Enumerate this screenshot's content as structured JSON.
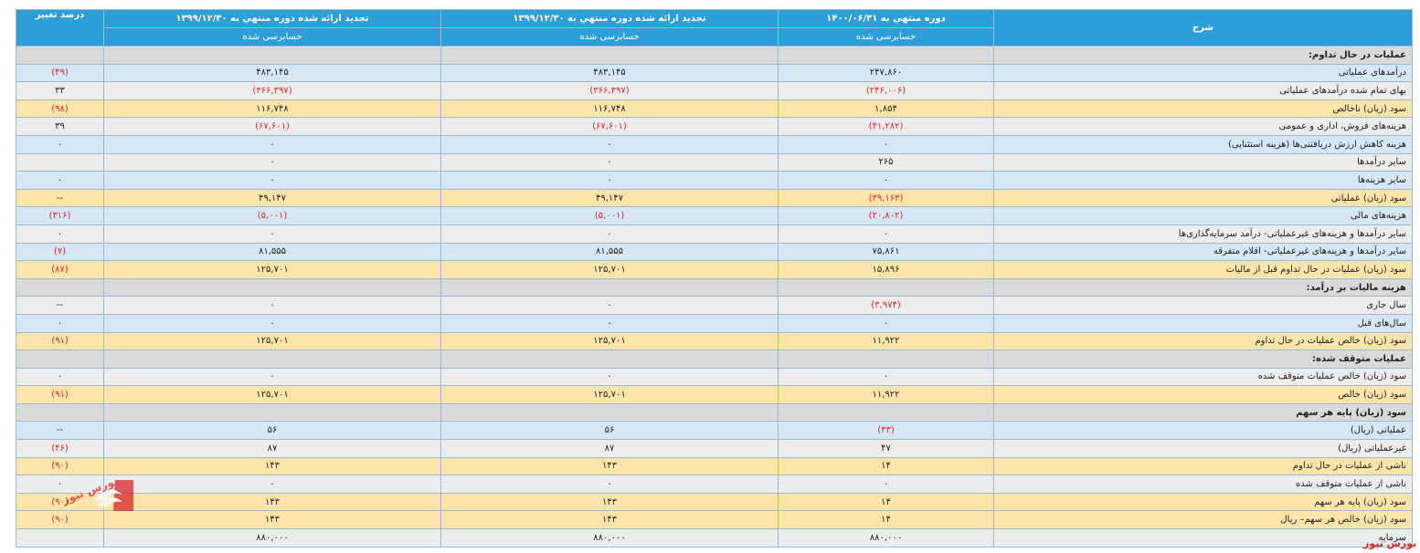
{
  "header": {
    "desc": "شرح",
    "col1": "دوره منتهي به ۱۴۰۰/۰۶/۳۱",
    "col2": "تجدید ارائه شده دوره منتهي به ۱۳۹۹/۱۲/۳۰",
    "col3": "تجدید ارائه شده دوره منتهي به ۱۳۹۹/۱۲/۳۰",
    "col4": "درصد تغییر",
    "sub1": "حسابرسی شده",
    "sub2": "حسابرسی شده",
    "sub3": "حسابرسی شده"
  },
  "rows": [
    {
      "type": "sec",
      "desc": "عملیات در حال تداوم:",
      "c1": "",
      "c2": "",
      "c3": "",
      "c4": ""
    },
    {
      "type": "blue",
      "desc": "درآمدهای عملیاتی",
      "c1": "۲۴۷,۸۶۰",
      "c2": "۴۸۳,۱۴۵",
      "c3": "۴۸۳,۱۴۵",
      "c4": "(۴۹)"
    },
    {
      "type": "gray",
      "desc": "بهای تمام شده درآمدهای عملیاتی",
      "c1": "(۲۴۶,۰۰۶)",
      "c2": "(۳۶۶,۳۹۷)",
      "c3": "(۳۶۶,۳۹۷)",
      "c4": "۳۳"
    },
    {
      "type": "yellow",
      "desc": "سود (زیان) ناخالص",
      "c1": "۱,۸۵۴",
      "c2": "۱۱۶,۷۴۸",
      "c3": "۱۱۶,۷۴۸",
      "c4": "(۹۸)"
    },
    {
      "type": "gray",
      "desc": "هزینه‌های فروش، اداری و عمومی",
      "c1": "(۴۱,۲۸۲)",
      "c2": "(۶۷,۶۰۱)",
      "c3": "(۶۷,۶۰۱)",
      "c4": "۳۹"
    },
    {
      "type": "blue",
      "desc": "هزینه کاهش ارزش دریافتنی‌ها (هزینه استثنایی)",
      "c1": "۰",
      "c2": "۰",
      "c3": "۰",
      "c4": "۰"
    },
    {
      "type": "gray",
      "desc": "سایر درآمدها",
      "c1": "۲۶۵",
      "c2": "۰",
      "c3": "۰",
      "c4": ""
    },
    {
      "type": "blue",
      "desc": "سایر هزینه‌ها",
      "c1": "۰",
      "c2": "۰",
      "c3": "۰",
      "c4": "۰"
    },
    {
      "type": "yellow",
      "desc": "سود (زیان) عملیاتی",
      "c1": "(۳۹,۱۶۳)",
      "c2": "۴۹,۱۴۷",
      "c3": "۴۹,۱۴۷",
      "c4": "--"
    },
    {
      "type": "blue",
      "desc": "هزینه‌های مالی",
      "c1": "(۲۰,۸۰۲)",
      "c2": "(۵,۰۰۱)",
      "c3": "(۵,۰۰۱)",
      "c4": "(۳۱۶)"
    },
    {
      "type": "gray",
      "desc": "سایر درآمدها و هزینه‌های غیرعملیاتی- درآمد سرمایه‌گذاری‌ها",
      "c1": "۰",
      "c2": "۰",
      "c3": "۰",
      "c4": "۰"
    },
    {
      "type": "blue",
      "desc": "سایر درآمدها و هزینه‌های غیرعملیاتی- اقلام متفرقه",
      "c1": "۷۵,۸۶۱",
      "c2": "۸۱,۵۵۵",
      "c3": "۸۱,۵۵۵",
      "c4": "(۷)"
    },
    {
      "type": "yellow",
      "desc": "سود (زیان) عملیات در حال تداوم قبل از مالیات",
      "c1": "۱۵,۸۹۶",
      "c2": "۱۲۵,۷۰۱",
      "c3": "۱۲۵,۷۰۱",
      "c4": "(۸۷)"
    },
    {
      "type": "sec",
      "desc": "هزینه مالیات بر درآمد:",
      "c1": "",
      "c2": "",
      "c3": "",
      "c4": ""
    },
    {
      "type": "gray",
      "desc": "سال جاری",
      "c1": "(۳,۹۷۴)",
      "c2": "۰",
      "c3": "۰",
      "c4": "--"
    },
    {
      "type": "blue",
      "desc": "سال‌های قبل",
      "c1": "۰",
      "c2": "۰",
      "c3": "۰",
      "c4": "۰"
    },
    {
      "type": "yellow",
      "desc": "سود (زیان) خالص عملیات در حال تداوم",
      "c1": "۱۱,۹۲۲",
      "c2": "۱۲۵,۷۰۱",
      "c3": "۱۲۵,۷۰۱",
      "c4": "(۹۱)"
    },
    {
      "type": "sec",
      "desc": "عملیات متوقف شده:",
      "c1": "",
      "c2": "",
      "c3": "",
      "c4": ""
    },
    {
      "type": "gray",
      "desc": "سود (زیان) خالص عملیات متوقف شده",
      "c1": "۰",
      "c2": "۰",
      "c3": "۰",
      "c4": "۰"
    },
    {
      "type": "yellow",
      "desc": "سود (زیان) خالص",
      "c1": "۱۱,۹۲۲",
      "c2": "۱۲۵,۷۰۱",
      "c3": "۱۲۵,۷۰۱",
      "c4": "(۹۱)"
    },
    {
      "type": "sec",
      "desc": "سود (زیان) پایه هر سهم",
      "c1": "",
      "c2": "",
      "c3": "",
      "c4": ""
    },
    {
      "type": "blue",
      "desc": "عملیاتی (ریال)",
      "c1": "(۳۳)",
      "c2": "۵۶",
      "c3": "۵۶",
      "c4": "--"
    },
    {
      "type": "gray",
      "desc": "غیرعملیاتی (ریال)",
      "c1": "۴۷",
      "c2": "۸۷",
      "c3": "۸۷",
      "c4": "(۴۶)"
    },
    {
      "type": "yellow",
      "desc": "ناشی از عملیات در حال تداوم",
      "c1": "۱۴",
      "c2": "۱۴۳",
      "c3": "۱۴۳",
      "c4": "(۹۰)"
    },
    {
      "type": "gray",
      "desc": "ناشی از عملیات متوقف شده",
      "c1": "۰",
      "c2": "۰",
      "c3": "۰",
      "c4": "۰"
    },
    {
      "type": "yellow",
      "desc": "سود (زیان) پایه هر سهم",
      "c1": "۱۴",
      "c2": "۱۴۳",
      "c3": "۱۴۳",
      "c4": "(۹۰)"
    },
    {
      "type": "yellow",
      "desc": "سود (زیان) خالص هر سهم– ریال",
      "c1": "۱۴",
      "c2": "۱۴۳",
      "c3": "۱۴۳",
      "c4": "(۹۰)"
    },
    {
      "type": "gray",
      "desc": "سرمایه",
      "c1": "۸۸۰,۰۰۰",
      "c2": "۸۸۰,۰۰۰",
      "c3": "۸۸۰,۰۰۰",
      "c4": ""
    }
  ],
  "brand": {
    "watermark": "بورس نیوز",
    "logo_text": "بورس نیوز",
    "accent": "#d6262b"
  }
}
